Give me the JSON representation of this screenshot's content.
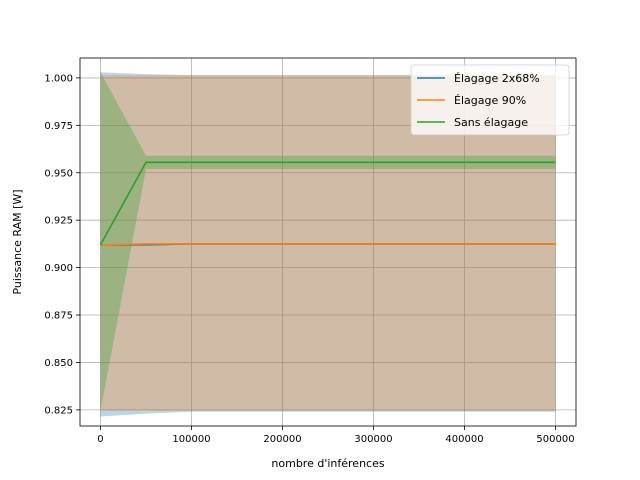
{
  "chart_data": {
    "type": "line",
    "title": "",
    "xlabel": "nombre d'inférences",
    "ylabel": "Puissance RAM [W]",
    "xlim": [
      -22500,
      522500
    ],
    "ylim": [
      0.8165,
      1.0105
    ],
    "xticks": [
      0,
      100000,
      200000,
      300000,
      400000,
      500000
    ],
    "xtick_labels": [
      "0",
      "100000",
      "200000",
      "300000",
      "400000",
      "500000"
    ],
    "yticks": [
      0.825,
      0.85,
      0.875,
      0.9,
      0.925,
      0.95,
      0.975,
      1.0
    ],
    "ytick_labels": [
      "0.825",
      "0.850",
      "0.875",
      "0.900",
      "0.925",
      "0.950",
      "0.975",
      "1.000"
    ],
    "grid": true,
    "legend_position": "top-right",
    "series": [
      {
        "name": "Élagage 2x68%",
        "color": "#1f77b4",
        "x": [
          0,
          50000,
          100000,
          500000
        ],
        "y": [
          0.912,
          0.912,
          0.9125,
          0.9125
        ],
        "band_low": [
          0.8215,
          0.823,
          0.824,
          0.824
        ],
        "band_high": [
          1.003,
          1.002,
          1.0015,
          1.0015
        ]
      },
      {
        "name": "Élagage 90%",
        "color": "#ff7f0e",
        "x": [
          0,
          50000,
          100000,
          500000
        ],
        "y": [
          0.912,
          0.9125,
          0.9125,
          0.9125
        ],
        "band_low": [
          0.8245,
          0.8245,
          0.8245,
          0.8245
        ],
        "band_high": [
          1.0015,
          1.0015,
          1.0015,
          1.0015
        ]
      },
      {
        "name": "Sans élagage",
        "color": "#2ca02c",
        "x": [
          0,
          50000,
          100000,
          500000
        ],
        "y": [
          0.912,
          0.9555,
          0.9555,
          0.9555
        ],
        "band_low": [
          0.8245,
          0.952,
          0.952,
          0.952
        ],
        "band_high": [
          1.003,
          0.959,
          0.959,
          0.959
        ]
      }
    ]
  }
}
